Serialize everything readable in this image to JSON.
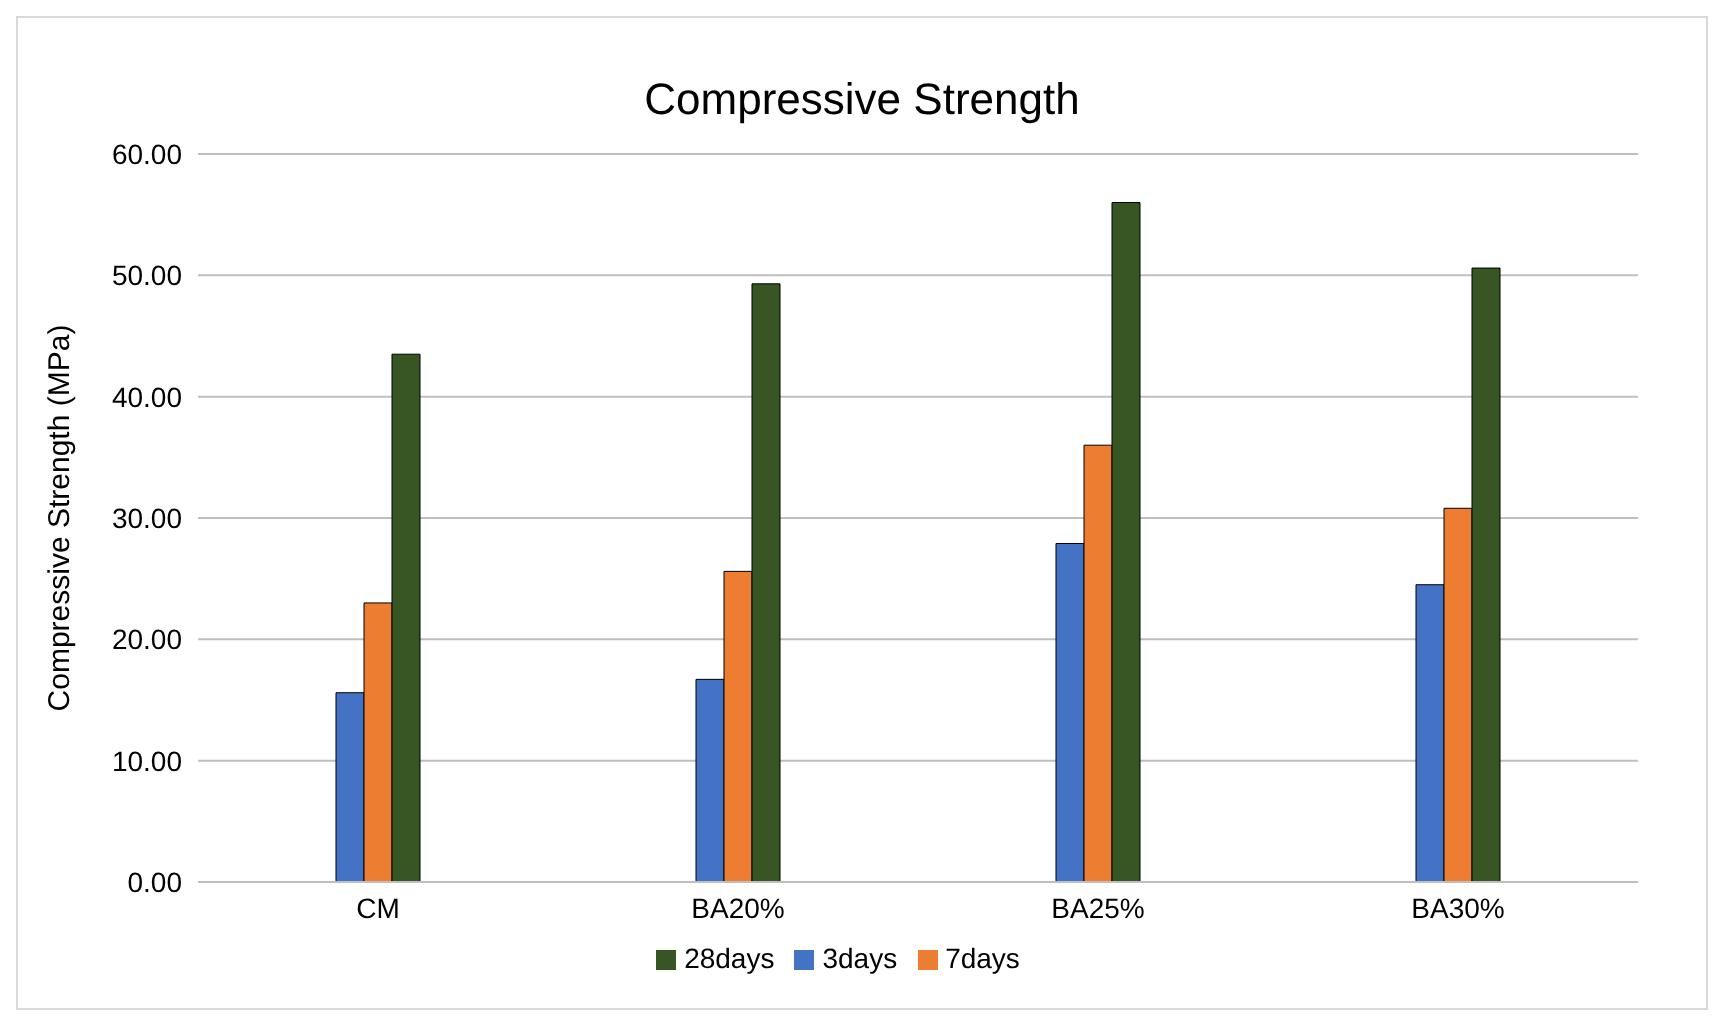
{
  "chart_data": {
    "type": "bar",
    "title": "Compressive Strength",
    "ylabel": "Compressive Strength (MPa)",
    "categories": [
      "CM",
      "BA20%",
      "BA25%",
      "BA30%"
    ],
    "series": [
      {
        "name": "3days",
        "color": "#4472c4",
        "values": [
          15.6,
          16.7,
          27.9,
          24.5
        ]
      },
      {
        "name": "7days",
        "color": "#ed7d31",
        "values": [
          23.0,
          25.6,
          36.0,
          30.8
        ]
      },
      {
        "name": "28days",
        "color": "#375623",
        "values": [
          43.5,
          49.3,
          56.0,
          50.6
        ]
      }
    ],
    "ylim": [
      0,
      60
    ],
    "yticks": [
      {
        "value": 0,
        "label": "0.00"
      },
      {
        "value": 10,
        "label": "10.00"
      },
      {
        "value": 20,
        "label": "20.00"
      },
      {
        "value": 30,
        "label": "30.00"
      },
      {
        "value": 40,
        "label": "40.00"
      },
      {
        "value": 50,
        "label": "50.00"
      },
      {
        "value": 60,
        "label": "60.00"
      }
    ],
    "grid": "y",
    "legend": "bottom"
  }
}
